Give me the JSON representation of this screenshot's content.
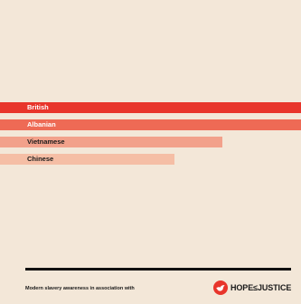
{
  "chart_data": {
    "type": "bar",
    "orientation": "horizontal",
    "categories": [
      "British",
      "Albanian",
      "Vietnamese",
      "Chinese"
    ],
    "values": [
      100,
      100,
      74,
      58
    ],
    "title": "",
    "xlabel": "",
    "ylabel": "",
    "xlim": [
      0,
      100
    ],
    "grid": false,
    "legend": "none",
    "colors": [
      "#e8352b",
      "#ee6a55",
      "#f2a18b",
      "#f5bea5"
    ]
  },
  "footer": {
    "text": "Modern slavery awareness in association with",
    "logo_text": "HOPE≤JUSTICE",
    "logo_icon": "dove-icon"
  },
  "colors": {
    "background": "#f3e7d8",
    "rule": "#111111",
    "brand_red": "#e8352b"
  }
}
